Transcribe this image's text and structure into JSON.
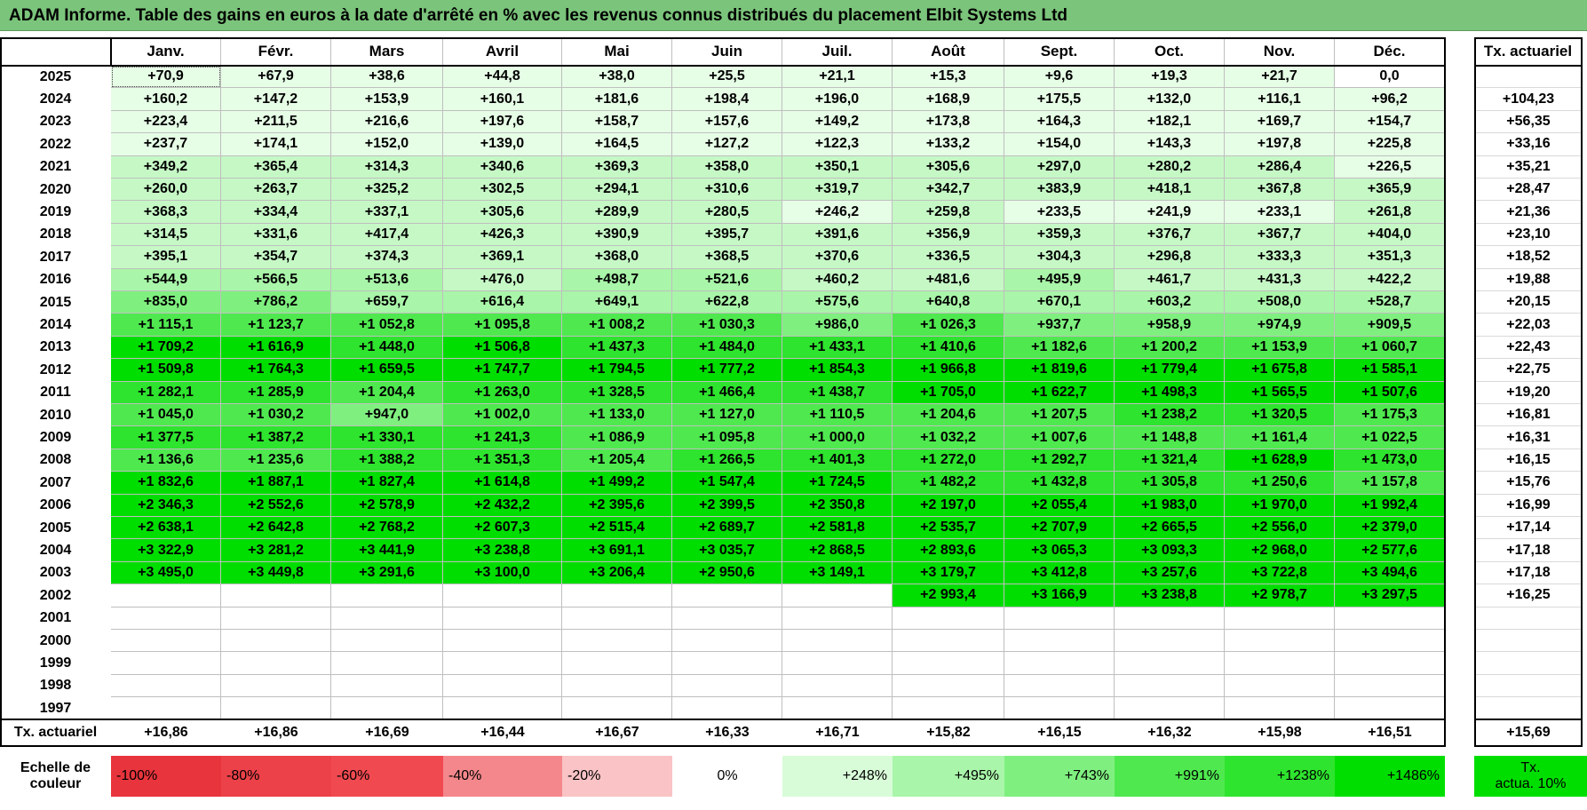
{
  "title": "ADAM Informe. Table des gains en euros à la date d'arrêté en % avec les revenus connus distribués du placement Elbit Systems Ltd",
  "months": [
    "Janv.",
    "Févr.",
    "Mars",
    "Avril",
    "Mai",
    "Juin",
    "Juil.",
    "Août",
    "Sept.",
    "Oct.",
    "Nov.",
    "Déc."
  ],
  "rate_header": "Tx. actuariel",
  "rows": [
    {
      "year": "2025",
      "values": [
        "+70,9",
        "+67,9",
        "+38,6",
        "+44,8",
        "+38,0",
        "+25,5",
        "+21,1",
        "+15,3",
        "+9,6",
        "+19,3",
        "+21,7",
        "0,0"
      ],
      "rate": ""
    },
    {
      "year": "2024",
      "values": [
        "+160,2",
        "+147,2",
        "+153,9",
        "+160,1",
        "+181,6",
        "+198,4",
        "+196,0",
        "+168,9",
        "+175,5",
        "+132,0",
        "+116,1",
        "+96,2"
      ],
      "rate": "+104,23"
    },
    {
      "year": "2023",
      "values": [
        "+223,4",
        "+211,5",
        "+216,6",
        "+197,6",
        "+158,7",
        "+157,6",
        "+149,2",
        "+173,8",
        "+164,3",
        "+182,1",
        "+169,7",
        "+154,7"
      ],
      "rate": "+56,35"
    },
    {
      "year": "2022",
      "values": [
        "+237,7",
        "+174,1",
        "+152,0",
        "+139,0",
        "+164,5",
        "+127,2",
        "+122,3",
        "+133,2",
        "+154,0",
        "+143,3",
        "+197,8",
        "+225,8"
      ],
      "rate": "+33,16"
    },
    {
      "year": "2021",
      "values": [
        "+349,2",
        "+365,4",
        "+314,3",
        "+340,6",
        "+369,3",
        "+358,0",
        "+350,1",
        "+305,6",
        "+297,0",
        "+280,2",
        "+286,4",
        "+226,5"
      ],
      "rate": "+35,21"
    },
    {
      "year": "2020",
      "values": [
        "+260,0",
        "+263,7",
        "+325,2",
        "+302,5",
        "+294,1",
        "+310,6",
        "+319,7",
        "+342,7",
        "+383,9",
        "+418,1",
        "+367,8",
        "+365,9"
      ],
      "rate": "+28,47"
    },
    {
      "year": "2019",
      "values": [
        "+368,3",
        "+334,4",
        "+337,1",
        "+305,6",
        "+289,9",
        "+280,5",
        "+246,2",
        "+259,8",
        "+233,5",
        "+241,9",
        "+233,1",
        "+261,8"
      ],
      "rate": "+21,36"
    },
    {
      "year": "2018",
      "values": [
        "+314,5",
        "+331,6",
        "+417,4",
        "+426,3",
        "+390,9",
        "+395,7",
        "+391,6",
        "+356,9",
        "+359,3",
        "+376,7",
        "+367,7",
        "+404,0"
      ],
      "rate": "+23,10"
    },
    {
      "year": "2017",
      "values": [
        "+395,1",
        "+354,7",
        "+374,3",
        "+369,1",
        "+368,0",
        "+368,5",
        "+370,6",
        "+336,5",
        "+304,3",
        "+296,8",
        "+333,3",
        "+351,3"
      ],
      "rate": "+18,52"
    },
    {
      "year": "2016",
      "values": [
        "+544,9",
        "+566,5",
        "+513,6",
        "+476,0",
        "+498,7",
        "+521,6",
        "+460,2",
        "+481,6",
        "+495,9",
        "+461,7",
        "+431,3",
        "+422,2"
      ],
      "rate": "+19,88"
    },
    {
      "year": "2015",
      "values": [
        "+835,0",
        "+786,2",
        "+659,7",
        "+616,4",
        "+649,1",
        "+622,8",
        "+575,6",
        "+640,8",
        "+670,1",
        "+603,2",
        "+508,0",
        "+528,7"
      ],
      "rate": "+20,15"
    },
    {
      "year": "2014",
      "values": [
        "+1 115,1",
        "+1 123,7",
        "+1 052,8",
        "+1 095,8",
        "+1 008,2",
        "+1 030,3",
        "+986,0",
        "+1 026,3",
        "+937,7",
        "+958,9",
        "+974,9",
        "+909,5"
      ],
      "rate": "+22,03"
    },
    {
      "year": "2013",
      "values": [
        "+1 709,2",
        "+1 616,9",
        "+1 448,0",
        "+1 506,8",
        "+1 437,3",
        "+1 484,0",
        "+1 433,1",
        "+1 410,6",
        "+1 182,6",
        "+1 200,2",
        "+1 153,9",
        "+1 060,7"
      ],
      "rate": "+22,43"
    },
    {
      "year": "2012",
      "values": [
        "+1 509,8",
        "+1 764,3",
        "+1 659,5",
        "+1 747,7",
        "+1 794,5",
        "+1 777,2",
        "+1 854,3",
        "+1 966,8",
        "+1 819,6",
        "+1 779,4",
        "+1 675,8",
        "+1 585,1"
      ],
      "rate": "+22,75"
    },
    {
      "year": "2011",
      "values": [
        "+1 282,1",
        "+1 285,9",
        "+1 204,4",
        "+1 263,0",
        "+1 328,5",
        "+1 466,4",
        "+1 438,7",
        "+1 705,0",
        "+1 622,7",
        "+1 498,3",
        "+1 565,5",
        "+1 507,6"
      ],
      "rate": "+19,20"
    },
    {
      "year": "2010",
      "values": [
        "+1 045,0",
        "+1 030,2",
        "+947,0",
        "+1 002,0",
        "+1 133,0",
        "+1 127,0",
        "+1 110,5",
        "+1 204,6",
        "+1 207,5",
        "+1 238,2",
        "+1 320,5",
        "+1 175,3"
      ],
      "rate": "+16,81"
    },
    {
      "year": "2009",
      "values": [
        "+1 377,5",
        "+1 387,2",
        "+1 330,1",
        "+1 241,3",
        "+1 086,9",
        "+1 095,8",
        "+1 000,0",
        "+1 032,2",
        "+1 007,6",
        "+1 148,8",
        "+1 161,4",
        "+1 022,5"
      ],
      "rate": "+16,31"
    },
    {
      "year": "2008",
      "values": [
        "+1 136,6",
        "+1 235,6",
        "+1 388,2",
        "+1 351,3",
        "+1 205,4",
        "+1 266,5",
        "+1 401,3",
        "+1 272,0",
        "+1 292,7",
        "+1 321,4",
        "+1 628,9",
        "+1 473,0"
      ],
      "rate": "+16,15"
    },
    {
      "year": "2007",
      "values": [
        "+1 832,6",
        "+1 887,1",
        "+1 827,4",
        "+1 614,8",
        "+1 499,2",
        "+1 547,4",
        "+1 724,5",
        "+1 482,2",
        "+1 432,8",
        "+1 305,8",
        "+1 250,6",
        "+1 157,8"
      ],
      "rate": "+15,76"
    },
    {
      "year": "2006",
      "values": [
        "+2 346,3",
        "+2 552,6",
        "+2 578,9",
        "+2 432,2",
        "+2 395,6",
        "+2 399,5",
        "+2 350,8",
        "+2 197,0",
        "+2 055,4",
        "+1 983,0",
        "+1 970,0",
        "+1 992,4"
      ],
      "rate": "+16,99"
    },
    {
      "year": "2005",
      "values": [
        "+2 638,1",
        "+2 642,8",
        "+2 768,2",
        "+2 607,3",
        "+2 515,4",
        "+2 689,7",
        "+2 581,8",
        "+2 535,7",
        "+2 707,9",
        "+2 665,5",
        "+2 556,0",
        "+2 379,0"
      ],
      "rate": "+17,14"
    },
    {
      "year": "2004",
      "values": [
        "+3 322,9",
        "+3 281,2",
        "+3 441,9",
        "+3 238,8",
        "+3 691,1",
        "+3 035,7",
        "+2 868,5",
        "+2 893,6",
        "+3 065,3",
        "+3 093,3",
        "+2 968,0",
        "+2 577,6"
      ],
      "rate": "+17,18"
    },
    {
      "year": "2003",
      "values": [
        "+3 495,0",
        "+3 449,8",
        "+3 291,6",
        "+3 100,0",
        "+3 206,4",
        "+2 950,6",
        "+3 149,1",
        "+3 179,7",
        "+3 412,8",
        "+3 257,6",
        "+3 722,8",
        "+3 494,6"
      ],
      "rate": "+17,18"
    },
    {
      "year": "2002",
      "values": [
        "",
        "",
        "",
        "",
        "",
        "",
        "",
        "+2 993,4",
        "+3 166,9",
        "+3 238,8",
        "+2 978,7",
        "+3 297,5"
      ],
      "rate": "+16,25"
    },
    {
      "year": "2001",
      "values": [
        "",
        "",
        "",
        "",
        "",
        "",
        "",
        "",
        "",
        "",
        "",
        ""
      ],
      "rate": ""
    },
    {
      "year": "2000",
      "values": [
        "",
        "",
        "",
        "",
        "",
        "",
        "",
        "",
        "",
        "",
        "",
        ""
      ],
      "rate": ""
    },
    {
      "year": "1999",
      "values": [
        "",
        "",
        "",
        "",
        "",
        "",
        "",
        "",
        "",
        "",
        "",
        ""
      ],
      "rate": ""
    },
    {
      "year": "1998",
      "values": [
        "",
        "",
        "",
        "",
        "",
        "",
        "",
        "",
        "",
        "",
        "",
        ""
      ],
      "rate": ""
    },
    {
      "year": "1997",
      "values": [
        "",
        "",
        "",
        "",
        "",
        "",
        "",
        "",
        "",
        "",
        "",
        ""
      ],
      "rate": ""
    }
  ],
  "footer": {
    "label": "Tx. actuariel",
    "values": [
      "+16,86",
      "+16,86",
      "+16,69",
      "+16,44",
      "+16,67",
      "+16,33",
      "+16,71",
      "+15,82",
      "+16,15",
      "+16,32",
      "+15,98",
      "+16,51"
    ],
    "total": "+15,69"
  },
  "scale": {
    "label_line1": "Echelle de",
    "label_line2": "couleur",
    "items": [
      {
        "text": "-100%",
        "color": "#e8343c",
        "align": "l"
      },
      {
        "text": "-80%",
        "color": "#ec4148",
        "align": "l"
      },
      {
        "text": "-60%",
        "color": "#f04a50",
        "align": "l"
      },
      {
        "text": "-40%",
        "color": "#f4878b",
        "align": "l"
      },
      {
        "text": "-20%",
        "color": "#fac3c5",
        "align": "l"
      },
      {
        "text": "0%",
        "color": "#ffffff",
        "align": "c"
      },
      {
        "text": "+248%",
        "color": "#d8fcd8",
        "align": "r"
      },
      {
        "text": "+495%",
        "color": "#a9f5a9",
        "align": "r"
      },
      {
        "text": "+743%",
        "color": "#7ff07f",
        "align": "r"
      },
      {
        "text": "+991%",
        "color": "#4fe94f",
        "align": "r"
      },
      {
        "text": "+1238%",
        "color": "#2ee42e",
        "align": "r"
      },
      {
        "text": "+1486%",
        "color": "#00de00",
        "align": "r"
      }
    ],
    "rate_line1": "Tx.",
    "rate_line2": "actua. 10%",
    "rate_color": "#00de00"
  }
}
